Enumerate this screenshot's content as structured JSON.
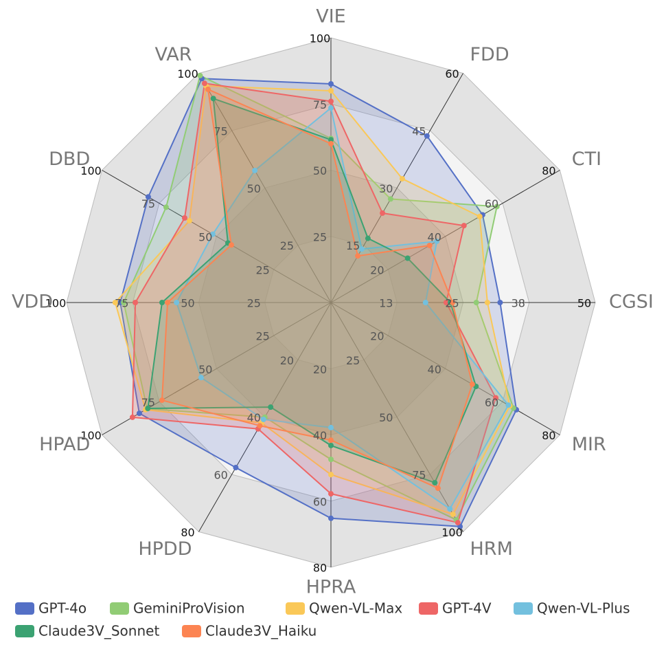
{
  "chart_data": {
    "type": "radar",
    "indicators": [
      {
        "name": "VIE",
        "lim": [
          0,
          100
        ],
        "ticks": [
          25,
          50,
          75,
          100
        ]
      },
      {
        "name": "FDD",
        "lim": [
          0,
          60
        ],
        "ticks": [
          15,
          30,
          45,
          60
        ]
      },
      {
        "name": "CTI",
        "lim": [
          0,
          80
        ],
        "ticks": [
          20,
          40,
          60,
          80
        ]
      },
      {
        "name": "CGSI",
        "lim": [
          0,
          50
        ],
        "ticks": [
          {
            "value": 12.5,
            "label": "13"
          },
          25,
          {
            "value": 37.5,
            "label": "38"
          },
          50
        ]
      },
      {
        "name": "MIR",
        "lim": [
          0,
          80
        ],
        "ticks": [
          20,
          40,
          60,
          80
        ]
      },
      {
        "name": "HRM",
        "lim": [
          0,
          100
        ],
        "ticks": [
          25,
          50,
          75,
          100
        ]
      },
      {
        "name": "HPRA",
        "lim": [
          0,
          80
        ],
        "ticks": [
          20,
          40,
          60,
          80
        ]
      },
      {
        "name": "HPDD",
        "lim": [
          0,
          80
        ],
        "ticks": [
          20,
          40,
          60,
          80
        ]
      },
      {
        "name": "HPAD",
        "lim": [
          0,
          100
        ],
        "ticks": [
          25,
          50,
          75,
          100
        ]
      },
      {
        "name": "VDD",
        "lim": [
          0,
          100
        ],
        "ticks": [
          25,
          50,
          75,
          100
        ]
      },
      {
        "name": "DBD",
        "lim": [
          0,
          100
        ],
        "ticks": [
          25,
          50,
          75,
          100
        ]
      },
      {
        "name": "VAR",
        "lim": [
          0,
          100
        ],
        "ticks": [
          25,
          50,
          75,
          100
        ]
      }
    ],
    "series": [
      {
        "name": "GPT-4o",
        "color": "#5470c6",
        "values": [
          82.6,
          43.6,
          53,
          32,
          64.8,
          97.7,
          65.2,
          57.6,
          83.7,
          79.7,
          79.8,
          97.7
        ]
      },
      {
        "name": "GeminiProVision",
        "color": "#91cc75",
        "values": [
          62,
          27.1,
          58,
          27.5,
          63.8,
          94.8,
          47.4,
          40,
          80.3,
          78.4,
          72,
          99
        ]
      },
      {
        "name": "Qwen-VL-Max",
        "color": "#fac858",
        "values": [
          80,
          32.4,
          52,
          29.6,
          62.5,
          92.4,
          52,
          42,
          81,
          81.6,
          61.8,
          94.5
        ]
      },
      {
        "name": "GPT-4V",
        "color": "#ee6666",
        "values": [
          76,
          23.4,
          46.5,
          21.8,
          57.6,
          96,
          57.8,
          44.1,
          86.7,
          74,
          63.9,
          95.6
        ]
      },
      {
        "name": "Qwen-VL-Plus",
        "color": "#73c0de",
        "values": [
          73.5,
          14,
          37,
          17.9,
          62,
          90,
          37.8,
          40.8,
          56.7,
          58.4,
          51.6,
          57.6
        ]
      },
      {
        "name": "Claude3V_Sonnet",
        "color": "#3ba272",
        "values": [
          61.5,
          16.8,
          26.8,
          22.6,
          50.7,
          78.6,
          43.2,
          36.5,
          80,
          63.9,
          45,
          89
        ]
      },
      {
        "name": "Claude3V_Haiku",
        "color": "#fc8452",
        "values": [
          60,
          12.2,
          34.5,
          23,
          49.4,
          81,
          41.6,
          43,
          73.8,
          61.8,
          43.5,
          93
        ]
      }
    ]
  }
}
